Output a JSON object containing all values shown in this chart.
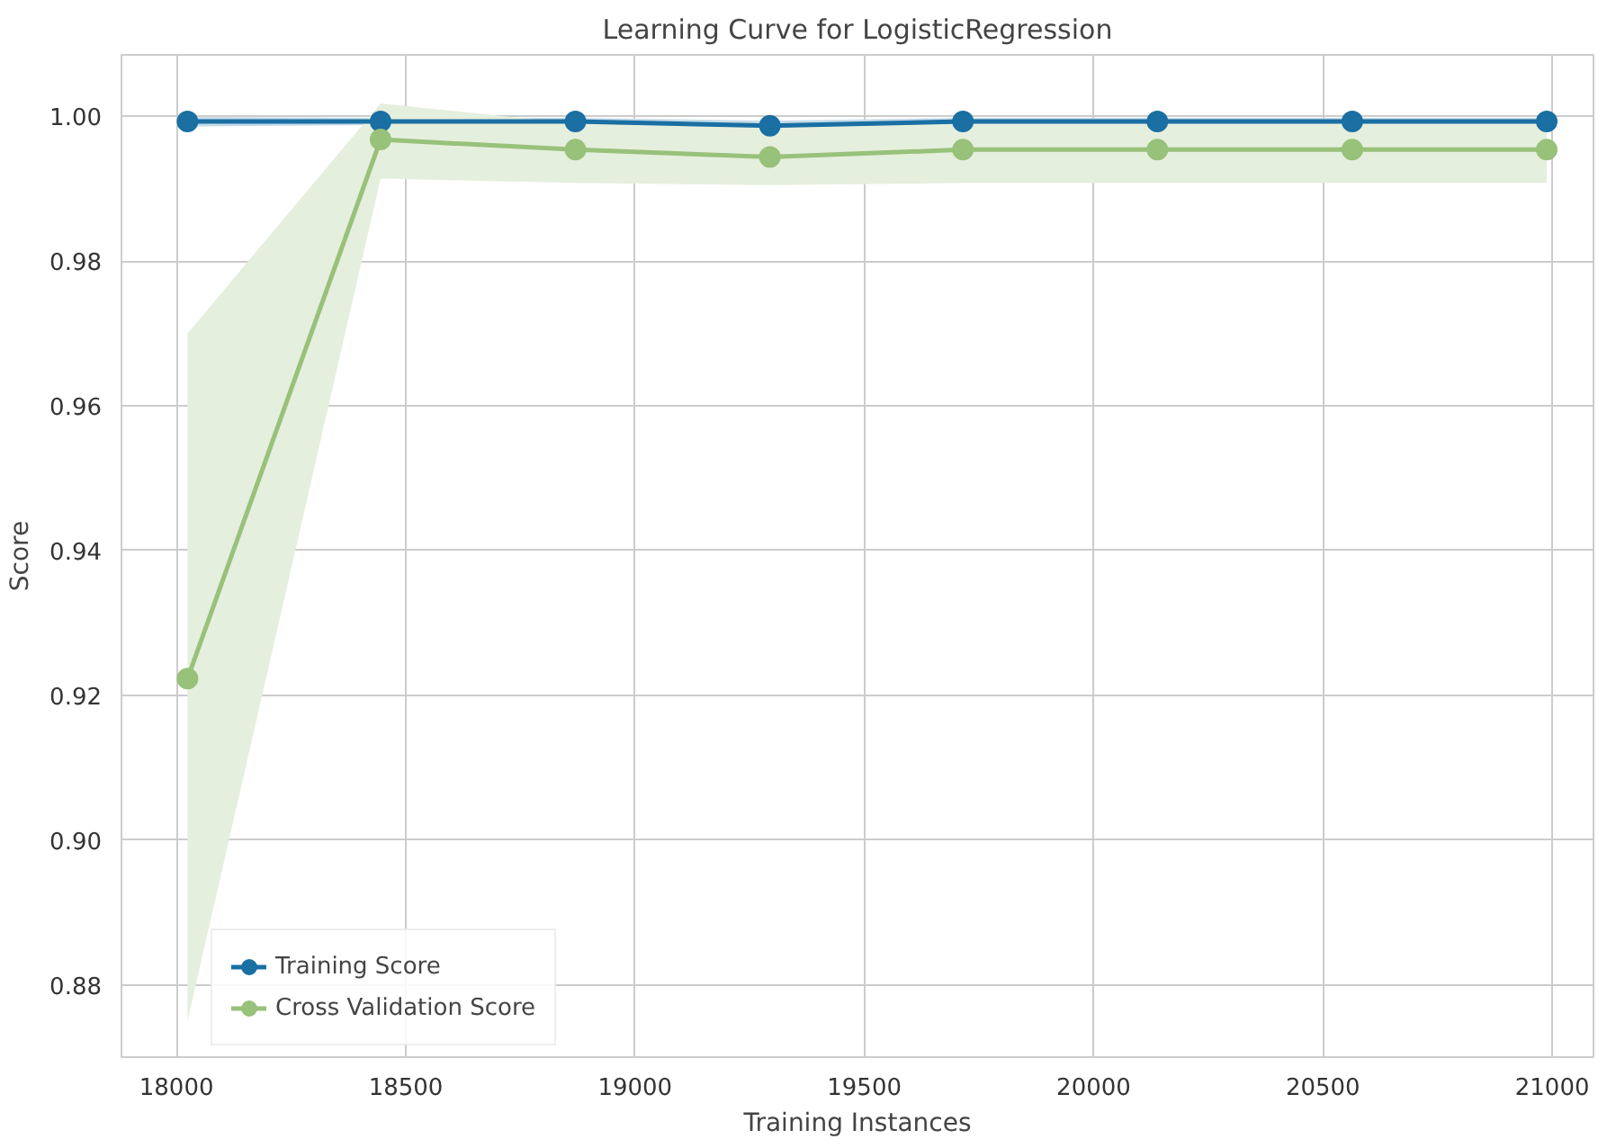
{
  "chart_data": {
    "type": "line",
    "title": "Learning Curve for LogisticRegression",
    "xlabel": "Training Instances",
    "ylabel": "Score",
    "x": [
      18024,
      18445,
      18870,
      19294,
      19715,
      20139,
      20564,
      20988
    ],
    "series": [
      {
        "name": "Training Score",
        "color": "#1a6fa3",
        "values": [
          0.9993,
          0.9993,
          0.9993,
          0.9987,
          0.9993,
          0.9993,
          0.9993,
          0.9993
        ],
        "lower": [
          0.9986,
          0.9988,
          0.9988,
          0.998,
          0.9988,
          0.9988,
          0.9988,
          0.9988
        ],
        "upper": [
          0.9999,
          0.9998,
          0.9998,
          0.9994,
          0.9998,
          0.9998,
          0.9998,
          0.9998
        ]
      },
      {
        "name": "Cross Validation Score",
        "color": "#98c17a",
        "values": [
          0.9223,
          0.9968,
          0.9954,
          0.9944,
          0.9954,
          0.9954,
          0.9954,
          0.9954
        ],
        "lower": [
          0.875,
          0.9914,
          0.9908,
          0.9905,
          0.9908,
          0.9908,
          0.9908,
          0.9908
        ],
        "upper": [
          0.97,
          1.0018,
          0.999,
          0.9985,
          0.999,
          0.999,
          0.999,
          0.999
        ]
      }
    ],
    "xlim": [
      17880,
      21090
    ],
    "ylim": [
      0.87,
      1.0085
    ],
    "xticks": [
      18000,
      18500,
      19000,
      19500,
      20000,
      20500,
      21000
    ],
    "yticks": [
      {
        "value": 0.88,
        "label": "0.88"
      },
      {
        "value": 0.9,
        "label": "0.90"
      },
      {
        "value": 0.92,
        "label": "0.92"
      },
      {
        "value": 0.94,
        "label": "0.94"
      },
      {
        "value": 0.96,
        "label": "0.96"
      },
      {
        "value": 0.98,
        "label": "0.98"
      },
      {
        "value": 1.0,
        "label": "1.00"
      }
    ],
    "grid": true,
    "legend": "bottom left",
    "marker": "circle",
    "line_style": "solid"
  }
}
